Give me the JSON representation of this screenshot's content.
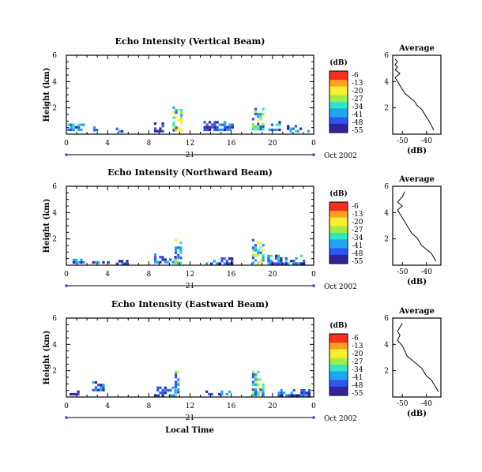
{
  "chart_data": [
    {
      "type": "heatmap",
      "title": "Echo Intensity (Vertical Beam)",
      "ylabel": "Height (km)",
      "x_ticks": [
        "0",
        "4",
        "8",
        "12",
        "16",
        "20",
        "0"
      ],
      "y_ticks": [
        "2",
        "4",
        "6"
      ],
      "xlim": [
        0,
        24
      ],
      "ylim": [
        0,
        6
      ],
      "date_row": {
        "day": "21",
        "date": "Oct 2002"
      },
      "colorbar": {
        "unit": "(dB)",
        "ticks": [
          "-6",
          "-13",
          "-20",
          "-27",
          "-34",
          "-41",
          "-48",
          "-55"
        ]
      },
      "echo_regions": [
        {
          "x": [
            0.1,
            1.8
          ],
          "y": [
            0.3,
            1.0
          ],
          "level": "mixed"
        },
        {
          "x": [
            2.6,
            3.0
          ],
          "y": [
            0.3,
            0.6
          ],
          "level": "weak"
        },
        {
          "x": [
            4.8,
            5.4
          ],
          "y": [
            0.3,
            0.5
          ],
          "level": "weak"
        },
        {
          "x": [
            8.5,
            9.4
          ],
          "y": [
            0.3,
            0.9
          ],
          "level": "weak"
        },
        {
          "x": [
            10.3,
            11.2
          ],
          "y": [
            0.3,
            2.5
          ],
          "level": "strong"
        },
        {
          "x": [
            13.3,
            16.2
          ],
          "y": [
            0.3,
            1.0
          ],
          "level": "weak"
        },
        {
          "x": [
            18.0,
            19.2
          ],
          "y": [
            0.3,
            2.2
          ],
          "level": "strong"
        },
        {
          "x": [
            19.6,
            20.6
          ],
          "y": [
            0.3,
            1.0
          ],
          "level": "mixed"
        },
        {
          "x": [
            21.4,
            23.6
          ],
          "y": [
            0.3,
            0.7
          ],
          "level": "mixed"
        }
      ],
      "average_profile": {
        "title": "Average",
        "xlabel": "(dB)",
        "x_ticks": [
          "-50",
          "-40"
        ],
        "y_ticks": [
          "2",
          "4",
          "6"
        ],
        "xlim": [
          -54,
          -34
        ],
        "ylim": [
          0,
          6
        ],
        "x": [
          -37,
          -38,
          -39,
          -40,
          -41,
          -42,
          -44,
          -45,
          -47,
          -49,
          -50,
          -51,
          -52,
          -53,
          -51,
          -53,
          -52,
          -53,
          -52,
          -53
        ],
        "y": [
          0.3,
          0.7,
          1.0,
          1.3,
          1.6,
          1.9,
          2.2,
          2.5,
          2.8,
          3.1,
          3.4,
          3.7,
          4.0,
          4.3,
          4.6,
          4.9,
          5.1,
          5.3,
          5.5,
          5.7
        ]
      }
    },
    {
      "type": "heatmap",
      "title": "Echo Intensity (Northward Beam)",
      "ylabel": "Height (km)",
      "x_ticks": [
        "0",
        "4",
        "8",
        "12",
        "16",
        "20",
        "0"
      ],
      "y_ticks": [
        "2",
        "4",
        "6"
      ],
      "xlim": [
        0,
        24
      ],
      "ylim": [
        0,
        6
      ],
      "date_row": {
        "day": "21",
        "date": "Oct 2002"
      },
      "colorbar": {
        "unit": "(dB)",
        "ticks": [
          "-6",
          "-13",
          "-20",
          "-27",
          "-34",
          "-41",
          "-48",
          "-55"
        ]
      },
      "echo_regions": [
        {
          "x": [
            0.6,
            1.8
          ],
          "y": [
            0.2,
            0.5
          ],
          "level": "mixed"
        },
        {
          "x": [
            2.5,
            4.0
          ],
          "y": [
            0.2,
            0.5
          ],
          "level": "weak"
        },
        {
          "x": [
            4.8,
            6.0
          ],
          "y": [
            0.2,
            0.4
          ],
          "level": "weak"
        },
        {
          "x": [
            8.5,
            10.5
          ],
          "y": [
            0.2,
            0.9
          ],
          "level": "weak"
        },
        {
          "x": [
            10.5,
            11.0
          ],
          "y": [
            0.2,
            2.0
          ],
          "level": "strong"
        },
        {
          "x": [
            13.5,
            16.0
          ],
          "y": [
            0.2,
            0.6
          ],
          "level": "weak"
        },
        {
          "x": [
            18.0,
            19.0
          ],
          "y": [
            0.2,
            2.0
          ],
          "level": "strong"
        },
        {
          "x": [
            19.5,
            23.0
          ],
          "y": [
            0.2,
            0.8
          ],
          "level": "mixed"
        }
      ],
      "average_profile": {
        "title": "Average",
        "xlabel": "(dB)",
        "x_ticks": [
          "-50",
          "-40"
        ],
        "y_ticks": [
          "2",
          "4",
          "6"
        ],
        "xlim": [
          -54,
          -34
        ],
        "ylim": [
          0,
          6
        ],
        "x": [
          -36,
          -37,
          -38,
          -40,
          -42,
          -43,
          -44,
          -46,
          -47,
          -48,
          -49,
          -50,
          -51,
          -52,
          -50,
          -52,
          -50,
          -49
        ],
        "y": [
          0.3,
          0.6,
          0.9,
          1.2,
          1.5,
          1.8,
          2.1,
          2.4,
          2.7,
          3.0,
          3.3,
          3.6,
          3.9,
          4.2,
          4.5,
          4.8,
          5.2,
          5.6
        ]
      }
    },
    {
      "type": "heatmap",
      "title": "Echo Intensity (Eastward Beam)",
      "ylabel": "Height (km)",
      "x_ticks": [
        "0",
        "4",
        "8",
        "12",
        "16",
        "20",
        "0"
      ],
      "y_ticks": [
        "2",
        "4",
        "6"
      ],
      "xlim": [
        0,
        24
      ],
      "ylim": [
        0,
        6
      ],
      "date_row": {
        "day": "21",
        "date": "Oct 2002"
      },
      "colorbar": {
        "unit": "(dB)",
        "ticks": [
          "-6",
          "-13",
          "-20",
          "-27",
          "-34",
          "-41",
          "-48",
          "-55"
        ]
      },
      "echo_regions": [
        {
          "x": [
            0.3,
            1.5
          ],
          "y": [
            0.2,
            0.5
          ],
          "level": "weak"
        },
        {
          "x": [
            2.5,
            3.5
          ],
          "y": [
            0.5,
            1.2
          ],
          "level": "weak"
        },
        {
          "x": [
            8.5,
            10.5
          ],
          "y": [
            0.2,
            0.8
          ],
          "level": "weak"
        },
        {
          "x": [
            10.5,
            10.9
          ],
          "y": [
            0.2,
            2.0
          ],
          "level": "strong"
        },
        {
          "x": [
            13.5,
            16.0
          ],
          "y": [
            0.2,
            0.5
          ],
          "level": "weak"
        },
        {
          "x": [
            18.0,
            19.0
          ],
          "y": [
            0.2,
            2.0
          ],
          "level": "strong"
        },
        {
          "x": [
            20.5,
            23.5
          ],
          "y": [
            0.2,
            0.6
          ],
          "level": "weak"
        }
      ],
      "average_profile": {
        "title": "Average",
        "xlabel": "(dB)",
        "x_ticks": [
          "-50",
          "-40"
        ],
        "y_ticks": [
          "2",
          "4",
          "6"
        ],
        "xlim": [
          -54,
          -34
        ],
        "ylim": [
          0,
          6
        ],
        "x": [
          -35,
          -36,
          -37,
          -38,
          -40,
          -41,
          -42,
          -44,
          -46,
          -48,
          -49,
          -50,
          -52,
          -51,
          -52,
          -51,
          -50
        ],
        "y": [
          0.4,
          0.7,
          1.0,
          1.3,
          1.6,
          1.9,
          2.2,
          2.5,
          2.8,
          3.1,
          3.5,
          3.9,
          4.3,
          4.7,
          5.0,
          5.3,
          5.6
        ]
      }
    }
  ],
  "bottom_xlabel": "Local Time",
  "colors": {
    "scale": [
      "#f62f1e",
      "#ffa020",
      "#f6f030",
      "#9fec4a",
      "#30e7c2",
      "#1fa6f2",
      "#2f55f4",
      "#30249a"
    ],
    "axes": "#000000",
    "marker": "#3d3fd2"
  }
}
